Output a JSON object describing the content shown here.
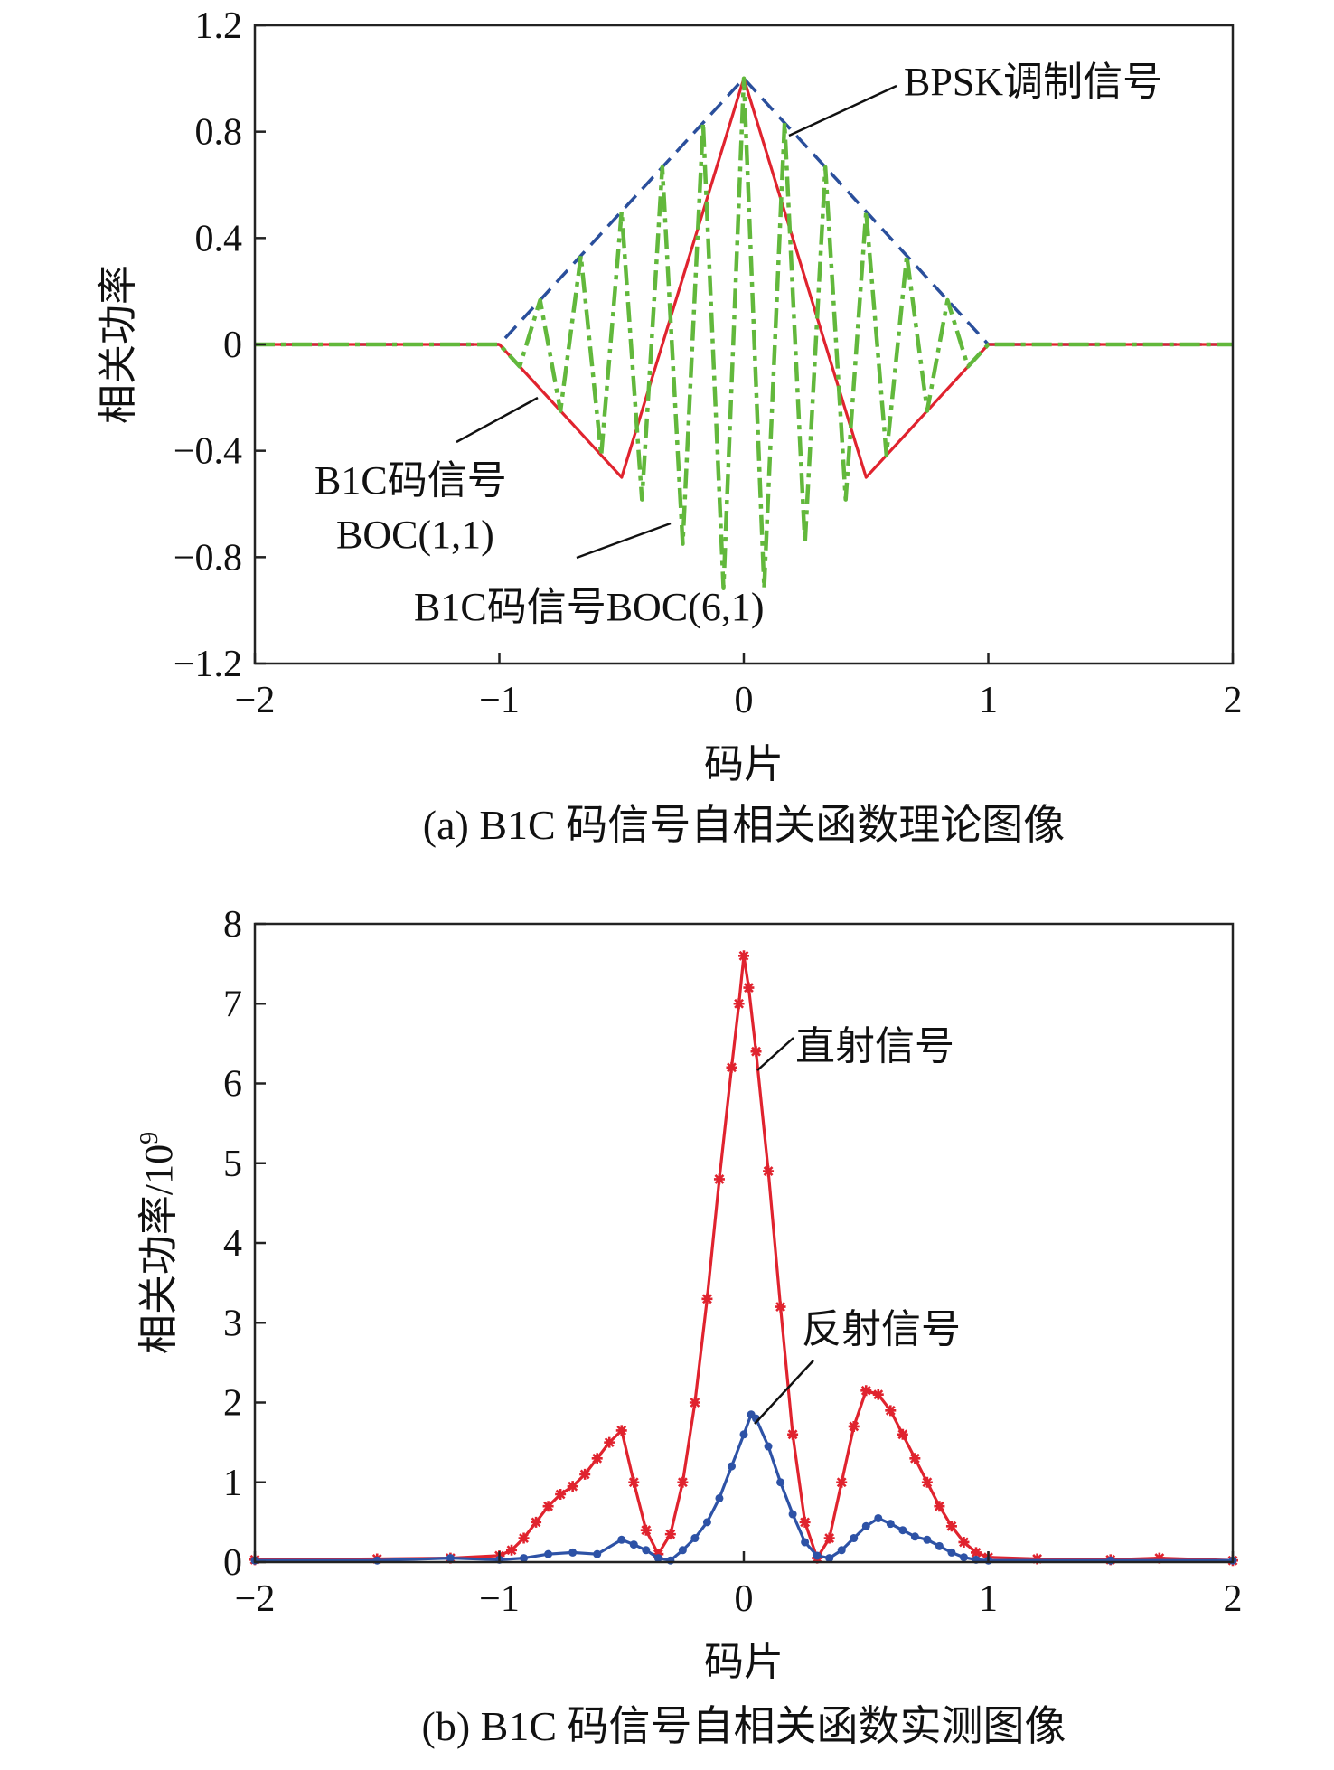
{
  "colors": {
    "bpsk": "#2a4f9c",
    "boc11": "#e0232e",
    "boc61": "#62b83c",
    "direct": "#e0232e",
    "reflected": "#2d52a6",
    "axis": "#222222"
  },
  "chart_data": [
    {
      "type": "line",
      "caption": "(a) B1C 码信号自相关函数理论图像",
      "xlabel": "码片",
      "ylabel": "相关功率",
      "xlim": [
        -2,
        2
      ],
      "ylim": [
        -1.2,
        1.2
      ],
      "xticks": [
        -2,
        -1,
        0,
        1,
        2
      ],
      "xtick_labels": [
        "−2",
        "−1",
        "0",
        "1",
        "2"
      ],
      "yticks": [
        -1.2,
        -0.8,
        -0.4,
        0,
        0.4,
        0.8,
        1.2
      ],
      "ytick_labels": [
        "−1.2",
        "−0.8",
        "−0.4",
        "0",
        "0.4",
        "0.8",
        "1.2"
      ],
      "grid": false,
      "series": [
        {
          "name": "BPSK调制信号",
          "style": "dashed",
          "x": [
            -2,
            -1,
            0,
            1,
            2
          ],
          "y": [
            0,
            0,
            1,
            0,
            0
          ]
        },
        {
          "name": "B1C码信号BOC(1,1)",
          "style": "solid",
          "x": [
            -2,
            -1,
            -0.5,
            0,
            0.5,
            1,
            2
          ],
          "y": [
            0,
            0,
            -0.5,
            1,
            -0.5,
            0,
            0
          ]
        },
        {
          "name": "B1C码信号BOC(6,1)",
          "style": "dashdot",
          "x": [
            -2,
            -1,
            -0.9167,
            -0.8333,
            -0.75,
            -0.6667,
            -0.5833,
            -0.5,
            -0.4167,
            -0.3333,
            -0.25,
            -0.1667,
            -0.0833,
            0,
            0.0833,
            0.1667,
            0.25,
            0.3333,
            0.4167,
            0.5,
            0.5833,
            0.6667,
            0.75,
            0.8333,
            0.9167,
            1,
            2
          ],
          "y": [
            0,
            0,
            -0.0833,
            0.1667,
            -0.25,
            0.3333,
            -0.4167,
            0.5,
            -0.5833,
            0.6667,
            -0.75,
            0.8333,
            -0.9167,
            1,
            -0.9167,
            0.8333,
            -0.75,
            0.6667,
            -0.5833,
            0.5,
            -0.4167,
            0.3333,
            -0.25,
            0.1667,
            -0.0833,
            0,
            0
          ]
        }
      ],
      "annotations": {
        "bpsk": "BPSK调制信号",
        "boc11_line1": "B1C码信号",
        "boc11_line2": "BOC(1,1)",
        "boc61": "B1C码信号BOC(6,1)"
      }
    },
    {
      "type": "line",
      "caption": "(b) B1C 码信号自相关函数实测图像",
      "xlabel": "码片",
      "ylabel": "相关功率/10",
      "ylabel_exponent": "9",
      "xlim": [
        -2,
        2
      ],
      "ylim": [
        0,
        8
      ],
      "xticks": [
        -2,
        -1,
        0,
        1,
        2
      ],
      "xtick_labels": [
        "−2",
        "−1",
        "0",
        "1",
        "2"
      ],
      "yticks": [
        0,
        1,
        2,
        3,
        4,
        5,
        6,
        7,
        8
      ],
      "ytick_labels": [
        "0",
        "1",
        "2",
        "3",
        "4",
        "5",
        "6",
        "7",
        "8"
      ],
      "grid": false,
      "series": [
        {
          "name": "直射信号",
          "marker": "star",
          "x": [
            -2,
            -1.5,
            -1.2,
            -1.0,
            -0.95,
            -0.9,
            -0.85,
            -0.8,
            -0.75,
            -0.7,
            -0.65,
            -0.6,
            -0.55,
            -0.5,
            -0.45,
            -0.4,
            -0.35,
            -0.3,
            -0.25,
            -0.2,
            -0.15,
            -0.1,
            -0.05,
            -0.02,
            0,
            0.02,
            0.05,
            0.1,
            0.15,
            0.2,
            0.25,
            0.3,
            0.35,
            0.4,
            0.45,
            0.5,
            0.55,
            0.6,
            0.65,
            0.7,
            0.75,
            0.8,
            0.85,
            0.9,
            0.95,
            1.0,
            1.2,
            1.5,
            1.7,
            2
          ],
          "y": [
            0.03,
            0.04,
            0.05,
            0.08,
            0.15,
            0.3,
            0.5,
            0.7,
            0.85,
            0.95,
            1.1,
            1.3,
            1.5,
            1.65,
            1.0,
            0.4,
            0.1,
            0.35,
            1.0,
            2.0,
            3.3,
            4.8,
            6.2,
            7.0,
            7.6,
            7.2,
            6.4,
            4.9,
            3.2,
            1.6,
            0.5,
            0.05,
            0.3,
            1.0,
            1.7,
            2.15,
            2.1,
            1.9,
            1.6,
            1.3,
            1.0,
            0.7,
            0.45,
            0.25,
            0.12,
            0.06,
            0.04,
            0.03,
            0.05,
            0.02
          ]
        },
        {
          "name": "反射信号",
          "marker": "dot",
          "x": [
            -2,
            -1.5,
            -1.2,
            -1.0,
            -0.9,
            -0.8,
            -0.7,
            -0.6,
            -0.5,
            -0.45,
            -0.4,
            -0.35,
            -0.3,
            -0.25,
            -0.2,
            -0.15,
            -0.1,
            -0.05,
            0,
            0.03,
            0.05,
            0.1,
            0.15,
            0.2,
            0.25,
            0.3,
            0.35,
            0.4,
            0.45,
            0.5,
            0.55,
            0.6,
            0.65,
            0.7,
            0.75,
            0.8,
            0.85,
            0.9,
            0.95,
            1.0,
            1.5,
            2
          ],
          "y": [
            0.02,
            0.02,
            0.05,
            0.03,
            0.05,
            0.1,
            0.12,
            0.1,
            0.28,
            0.22,
            0.15,
            0.05,
            0.02,
            0.15,
            0.3,
            0.5,
            0.8,
            1.2,
            1.6,
            1.85,
            1.8,
            1.45,
            1.0,
            0.6,
            0.25,
            0.08,
            0.05,
            0.15,
            0.3,
            0.45,
            0.55,
            0.48,
            0.4,
            0.32,
            0.28,
            0.2,
            0.12,
            0.06,
            0.03,
            0.02,
            0.02,
            0.02
          ]
        }
      ],
      "annotations": {
        "direct": "直射信号",
        "reflected": "反射信号"
      }
    }
  ]
}
